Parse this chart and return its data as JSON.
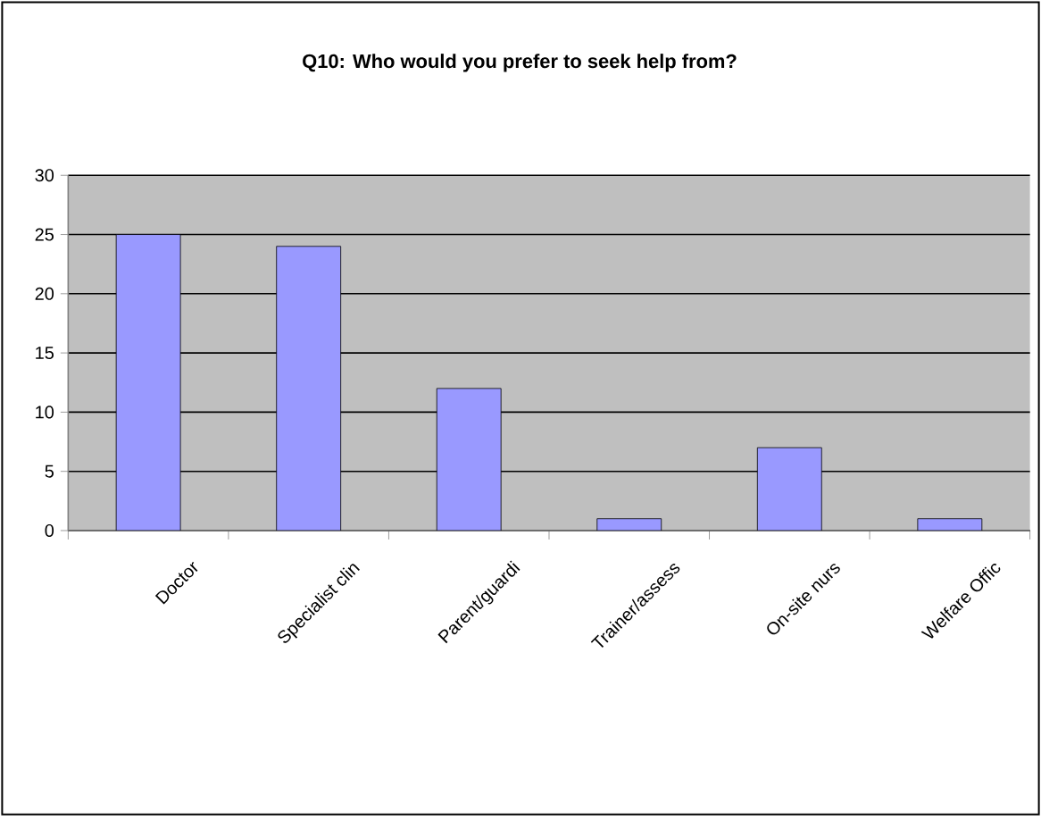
{
  "chart_data": {
    "type": "bar",
    "title": "Q10: Who would you prefer to seek help from?",
    "categories": [
      "Doctor",
      "Specialist clin",
      "Parent/guardi",
      "Trainer/assess",
      "On-site nurs",
      "Welfare Offic"
    ],
    "values": [
      25,
      24,
      12,
      1,
      7,
      1
    ],
    "color": "#9999ff",
    "ylim": [
      0,
      30
    ],
    "yticks": [
      0,
      5,
      10,
      15,
      20,
      25,
      30
    ],
    "grid": "y"
  }
}
